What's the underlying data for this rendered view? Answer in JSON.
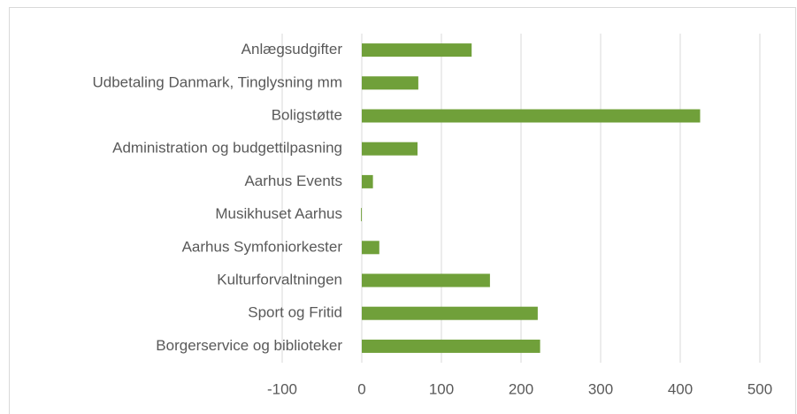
{
  "chart_data": {
    "type": "barh",
    "categories": [
      "Anlægsudgifter",
      "Udbetaling Danmark, Tinglysning mm",
      "Boligstøtte",
      "Administration og budgettilpasning",
      "Aarhus Events",
      "Musikhuset Aarhus",
      "Aarhus Symfoniorkester",
      "Kulturforvaltningen",
      "Sport og Fritid",
      "Borgerservice og biblioteker"
    ],
    "values": [
      138,
      71,
      425,
      70,
      14,
      -1,
      22,
      161,
      221,
      224
    ],
    "color": "#70a03a",
    "xlim": [
      -100,
      500
    ],
    "xticks": [
      -100,
      0,
      100,
      200,
      300,
      400,
      500
    ],
    "grid": true
  }
}
